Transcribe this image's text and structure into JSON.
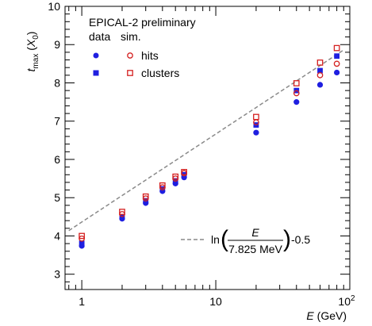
{
  "chart_data": {
    "type": "scatter",
    "title": "",
    "xlabel": "E (GeV)",
    "ylabel": "t_max (X_0)",
    "xscale": "log",
    "xlim": [
      0.75,
      100
    ],
    "ylim": [
      2.6,
      10
    ],
    "x_ticks": [
      {
        "value": 1,
        "label": "1"
      },
      {
        "value": 10,
        "label": "10"
      },
      {
        "value": 100,
        "label": "10",
        "exp": "2"
      }
    ],
    "y_ticks": [
      3,
      4,
      5,
      6,
      7,
      8,
      9,
      10
    ],
    "legend": {
      "title": "EPICAL-2 preliminary",
      "col_headers": [
        "data",
        "sim."
      ],
      "entries": [
        "hits",
        "clusters"
      ],
      "placement": "top-left"
    },
    "series": [
      {
        "name": "data hits",
        "marker": "filled-circle",
        "color": "#1f1fe0",
        "x": [
          1,
          2,
          3,
          4,
          5,
          5.8,
          20,
          40,
          60,
          80
        ],
        "y": [
          3.74,
          4.45,
          4.86,
          5.17,
          5.37,
          5.53,
          6.7,
          7.5,
          7.95,
          8.27
        ]
      },
      {
        "name": "data clusters",
        "marker": "filled-square",
        "color": "#1f1fe0",
        "x": [
          1,
          2,
          3,
          4,
          5,
          5.8,
          20,
          40,
          60,
          80
        ],
        "y": [
          3.81,
          4.49,
          4.92,
          5.23,
          5.44,
          5.6,
          6.9,
          7.8,
          8.32,
          8.7
        ]
      },
      {
        "name": "sim. hits",
        "marker": "open-circle",
        "color": "#d42020",
        "x": [
          1,
          2,
          3,
          4,
          5,
          5.8,
          20,
          40,
          60,
          80
        ],
        "y": [
          3.93,
          4.57,
          4.98,
          5.27,
          5.5,
          5.64,
          6.97,
          7.73,
          8.2,
          8.5
        ]
      },
      {
        "name": "sim. clusters",
        "marker": "open-square",
        "color": "#d42020",
        "x": [
          1,
          2,
          3,
          4,
          5,
          5.8,
          20,
          40,
          60,
          80
        ],
        "y": [
          4.0,
          4.63,
          5.03,
          5.32,
          5.55,
          5.67,
          7.11,
          7.99,
          8.53,
          8.91
        ]
      },
      {
        "name": "fit",
        "kind": "dashed-line",
        "color": "#8a8a8a",
        "x": [
          0.8,
          90
        ],
        "y": [
          4.14,
          8.86
        ]
      }
    ],
    "annotation": {
      "prefix": "ln",
      "numerator": "E",
      "denominator": "7.825 MeV",
      "suffix": "-0.5"
    }
  }
}
